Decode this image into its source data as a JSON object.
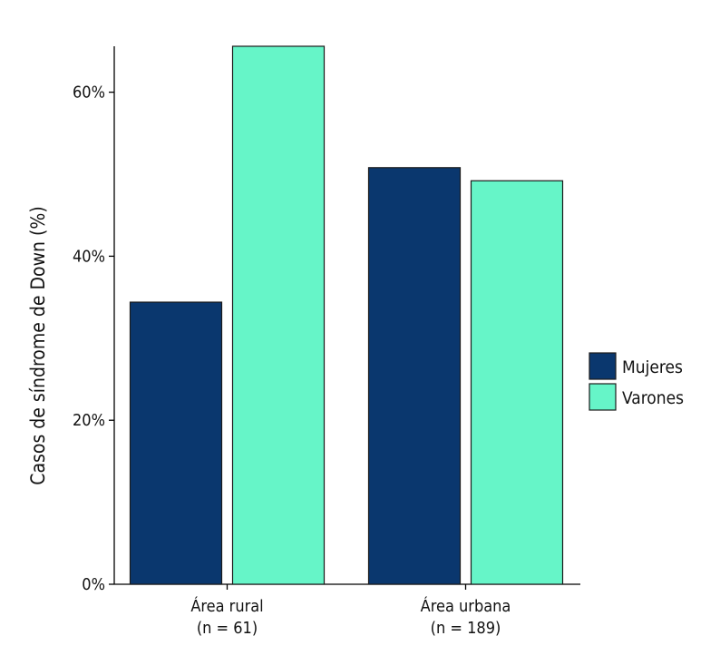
{
  "chart_data": {
    "type": "bar",
    "ylabel": "Casos de síndrome de Down (%)",
    "xlabel": "",
    "categories": [
      {
        "label": "Área rural",
        "sublabel": "(n = 61)"
      },
      {
        "label": "Área urbana",
        "sublabel": "(n = 189)"
      }
    ],
    "series": [
      {
        "name": "Mujeres",
        "color": "#0a376e",
        "values": [
          34.4,
          50.8
        ]
      },
      {
        "name": "Varones",
        "color": "#66f5c8",
        "values": [
          65.6,
          49.2
        ]
      }
    ],
    "yticks": [
      0,
      20,
      40,
      60
    ],
    "ytick_labels": [
      "0%",
      "20%",
      "40%",
      "60%"
    ],
    "ylim": [
      0,
      65.6
    ],
    "grid": false,
    "legend": "right"
  }
}
